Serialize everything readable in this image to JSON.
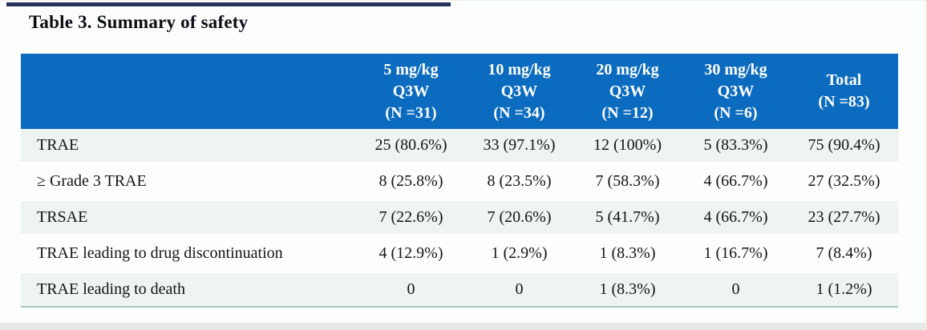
{
  "title": "Table 3. Summary of safety",
  "table": {
    "header": {
      "columns": [
        {
          "lines": [
            "5 mg/kg",
            "Q3W",
            "(N =31)"
          ],
          "full": "5 mg/kg Q3W (N =31)"
        },
        {
          "lines": [
            "10 mg/kg",
            "Q3W",
            "(N =34)"
          ],
          "full": "10 mg/kg Q3W (N =34)"
        },
        {
          "lines": [
            "20 mg/kg",
            "Q3W",
            "(N =12)"
          ],
          "full": "20 mg/kg Q3W (N =12)"
        },
        {
          "lines": [
            "30 mg/kg",
            "Q3W",
            "(N =6)"
          ],
          "full": "30 mg/kg Q3W (N =6)"
        },
        {
          "lines": [
            "Total",
            "(N =83)"
          ],
          "full": "Total (N =83)"
        }
      ]
    },
    "rows": [
      {
        "label": "TRAE",
        "values": [
          "25 (80.6%)",
          "33 (97.1%)",
          "12 (100%)",
          "5 (83.3%)",
          "75 (90.4%)"
        ]
      },
      {
        "label": "≥ Grade 3 TRAE",
        "values": [
          "8 (25.8%)",
          "8 (23.5%)",
          "7 (58.3%)",
          "4 (66.7%)",
          "27 (32.5%)"
        ]
      },
      {
        "label": "TRSAE",
        "values": [
          "7 (22.6%)",
          "7 (20.6%)",
          "5 (41.7%)",
          "4 (66.7%)",
          "23 (27.7%)"
        ]
      },
      {
        "label": "TRAE leading to drug discontinuation",
        "values": [
          "4 (12.9%)",
          "1 (2.9%)",
          "1 (8.3%)",
          "1 (16.7%)",
          "7 (8.4%)"
        ]
      },
      {
        "label": "TRAE leading to death",
        "values": [
          "0",
          "0",
          "1 (8.3%)",
          "0",
          "1 (1.2%)"
        ]
      }
    ]
  },
  "colors": {
    "header_background": "#0b6bbe",
    "header_text": "#ffffff",
    "striped_row_background": "#edf4f1",
    "plain_row_background": "#fdfefd",
    "table_bottom_border": "#a9c7c4",
    "top_accent_line": "#26335e",
    "title_text": "#0c0c14",
    "body_text": "#141414"
  },
  "chart_data": {
    "type": "table",
    "title": "Table 3. Summary of safety",
    "columns": [
      "",
      "5 mg/kg Q3W (N =31)",
      "10 mg/kg Q3W (N =34)",
      "20 mg/kg Q3W (N =12)",
      "30 mg/kg Q3W (N =6)",
      "Total (N =83)"
    ],
    "rows": [
      [
        "TRAE",
        "25 (80.6%)",
        "33 (97.1%)",
        "12 (100%)",
        "5 (83.3%)",
        "75 (90.4%)"
      ],
      [
        "≥ Grade 3 TRAE",
        "8 (25.8%)",
        "8 (23.5%)",
        "7 (58.3%)",
        "4 (66.7%)",
        "27 (32.5%)"
      ],
      [
        "TRSAE",
        "7 (22.6%)",
        "7 (20.6%)",
        "5 (41.7%)",
        "4 (66.7%)",
        "23 (27.7%)"
      ],
      [
        "TRAE leading to drug discontinuation",
        "4 (12.9%)",
        "1 (2.9%)",
        "1 (8.3%)",
        "1 (16.7%)",
        "7 (8.4%)"
      ],
      [
        "TRAE leading to death",
        "0",
        "0",
        "1 (8.3%)",
        "0",
        "1 (1.2%)"
      ]
    ]
  }
}
